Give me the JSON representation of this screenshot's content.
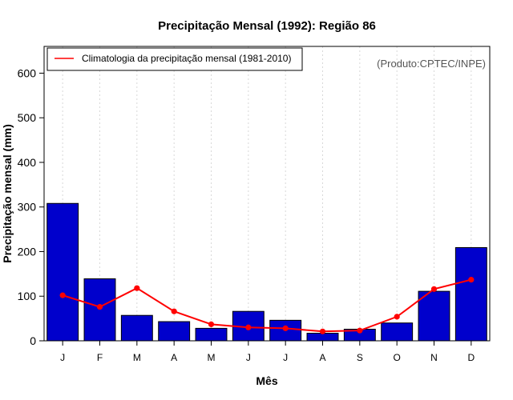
{
  "chart_data": {
    "type": "bar",
    "title": "Precipitação Mensal (1992): Região 86",
    "xlabel": "Mês",
    "ylabel": "Precipitação mensal (mm)",
    "categories": [
      "J",
      "F",
      "M",
      "A",
      "M",
      "J",
      "J",
      "A",
      "S",
      "O",
      "N",
      "D"
    ],
    "ylim": [
      0,
      660
    ],
    "yticks": [
      0,
      100,
      200,
      300,
      400,
      500,
      600
    ],
    "grid": true,
    "series": [
      {
        "name": "Precipitação mensal (1992)",
        "type": "bar",
        "color": "#0000cc",
        "values": [
          308,
          139,
          57,
          43,
          28,
          66,
          46,
          17,
          26,
          40,
          111,
          209
        ]
      },
      {
        "name": "Climatologia da precipitação mensal (1981-2010)",
        "type": "line",
        "color": "#ff0000",
        "values": [
          102,
          76,
          118,
          66,
          37,
          30,
          28,
          21,
          23,
          54,
          116,
          137
        ]
      }
    ],
    "legend": {
      "position": "top-left",
      "entries": [
        "Climatologia da precipitação mensal (1981-2010)"
      ]
    },
    "annotation": "(Produto:CPTEC/INPE)"
  }
}
